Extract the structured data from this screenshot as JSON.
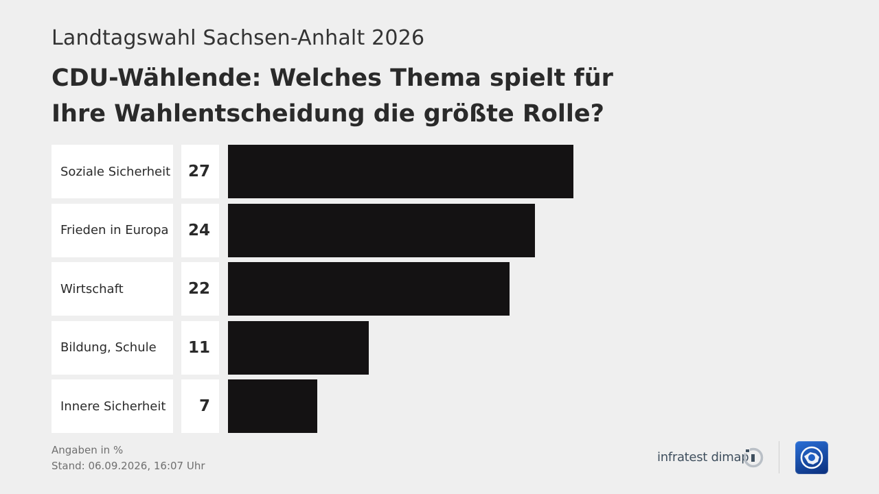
{
  "header": {
    "supertitle": "Landtagswahl Sachsen-Anhalt 2026",
    "title": "CDU-Wählende: Welches Thema spielt für Ihre Wahlentscheidung die größte Rolle?"
  },
  "chart_data": {
    "type": "bar",
    "orientation": "horizontal",
    "categories": [
      "Soziale Sicherheit",
      "Frieden in Europa",
      "Wirtschaft",
      "Bildung, Schule",
      "Innere Sicherheit"
    ],
    "values": [
      27,
      24,
      22,
      11,
      7
    ],
    "unit_note": "Angaben in %",
    "bar_color": "#141213",
    "grid": false,
    "legend": false
  },
  "footer": {
    "unit": "Angaben in %",
    "stand": "Stand:  06.09.2026, 16:07 Uhr",
    "brand": "infratest dimap",
    "brand_icon": "infratest-dimap-logo-icon",
    "broadcaster_icon": "tagesschau-logo-icon"
  }
}
